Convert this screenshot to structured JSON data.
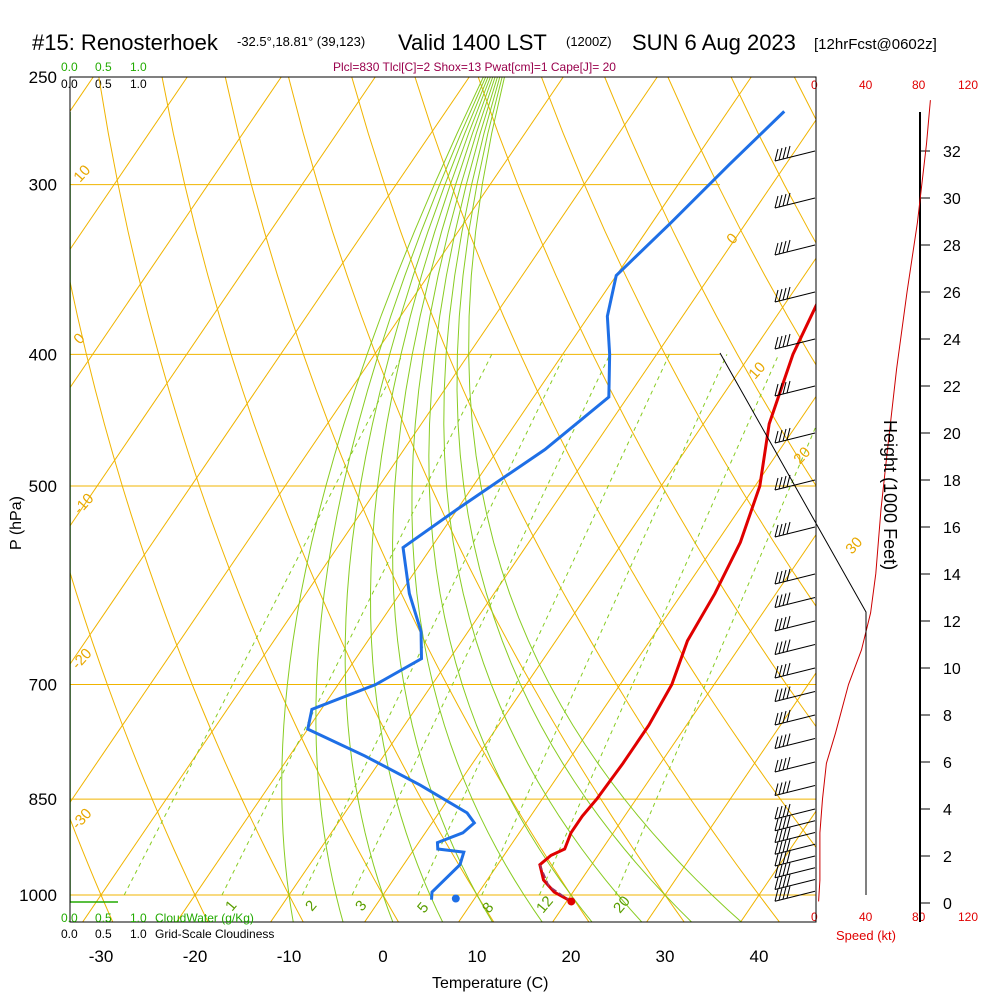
{
  "header": {
    "station": "#15: Renosterhoek",
    "coords": "-32.5°,18.81° (39,123)",
    "valid": "Valid 1400 LST",
    "zulu": "(1200Z)",
    "date": "SUN 6 Aug 2023",
    "forecast": "[12hrFcst@0602z]"
  },
  "indices": "Plcl=830 Tlcl[C]=2 Shox=13 Pwat[cm]=1 Cape[J]= 20",
  "cloud_scale": {
    "top_green": [
      "0.0",
      "0.5",
      "1.0"
    ],
    "top_black": [
      "0.0",
      "0.5",
      "1.0"
    ],
    "bottom_green": [
      "0.0",
      "0.5",
      "1.0"
    ],
    "bottom_black": [
      "0.0",
      "0.5",
      "1.0"
    ],
    "cloudwater_label": "CloudWater (g/Kg)",
    "cloudiness_label": "Grid-Scale Cloudiness"
  },
  "speed_axis": {
    "ticks": [
      "0",
      "40",
      "80",
      "120"
    ],
    "label": "Speed (kt)"
  },
  "chart_data": {
    "type": "line",
    "title": "#15: Renosterhoek Valid 1400 LST (1200Z) SUN 6 Aug 2023",
    "xlabel": "Temperature (C)",
    "ylabel": "P (hPa)",
    "y2label": "Height (1000 Feet)",
    "x_ticks": [
      "-30",
      "-20",
      "-10",
      "0",
      "10",
      "20",
      "30",
      "40"
    ],
    "y_ticks": [
      "250",
      "300",
      "400",
      "500",
      "700",
      "850",
      "1000"
    ],
    "height_ticks": [
      "0",
      "2",
      "4",
      "6",
      "8",
      "10",
      "12",
      "14",
      "16",
      "18",
      "20",
      "22",
      "24",
      "26",
      "28",
      "30",
      "32"
    ],
    "xlim": [
      -34,
      36
    ],
    "ylim": [
      1050,
      250
    ],
    "series": [
      {
        "key": "temperature",
        "color": "#e00000",
        "points": [
          [
            20.5,
            1011
          ],
          [
            18,
            995
          ],
          [
            16,
            975
          ],
          [
            14.5,
            950
          ],
          [
            15,
            935
          ],
          [
            16,
            925
          ],
          [
            15.5,
            900
          ],
          [
            15.5,
            875
          ],
          [
            15.8,
            850
          ],
          [
            16,
            800
          ],
          [
            16,
            750
          ],
          [
            15.5,
            700
          ],
          [
            14,
            650
          ],
          [
            13.5,
            600
          ],
          [
            12.5,
            550
          ],
          [
            10.5,
            500
          ],
          [
            7,
            450
          ],
          [
            4.5,
            400
          ],
          [
            3.5,
            370
          ],
          [
            2,
            330
          ],
          [
            0,
            300
          ],
          [
            -2,
            280
          ],
          [
            -4,
            265
          ]
        ]
      },
      {
        "key": "dewpoint",
        "color": "#1e6fe6",
        "points": [
          [
            5.5,
            1008
          ],
          [
            5,
            995
          ],
          [
            6,
            950
          ],
          [
            5.5,
            930
          ],
          [
            2.5,
            925
          ],
          [
            2,
            915
          ],
          [
            4,
            900
          ],
          [
            4.5,
            885
          ],
          [
            3,
            870
          ],
          [
            -4,
            830
          ],
          [
            -12,
            790
          ],
          [
            -20,
            755
          ],
          [
            -21,
            730
          ],
          [
            -16,
            700
          ],
          [
            -13,
            670
          ],
          [
            -15,
            640
          ],
          [
            -19,
            600
          ],
          [
            -23,
            555
          ],
          [
            -20,
            520
          ],
          [
            -15,
            470
          ],
          [
            -12,
            430
          ],
          [
            -15,
            400
          ],
          [
            -18,
            375
          ],
          [
            -20,
            350
          ],
          [
            -18,
            320
          ],
          [
            -16,
            290
          ],
          [
            -14,
            265
          ]
        ]
      },
      {
        "key": "parcel",
        "color": "#993366",
        "points": [
          [
            20.5,
            1011
          ],
          [
            17,
            985
          ],
          [
            14.5,
            950
          ]
        ]
      }
    ],
    "surface_temp": 20.5,
    "surface_dewpoint": 8,
    "surface_pressure": 1011,
    "isotherm_labels": [
      "10",
      "0",
      "-10",
      "-20",
      "-30",
      "0",
      "10",
      "20",
      "30"
    ],
    "mixing_ratio_labels": [
      "1",
      "2",
      "3",
      "5",
      "8",
      "12",
      "20"
    ],
    "wind_speed_profile": {
      "x_range_kt": [
        0,
        120
      ],
      "points": [
        [
          2,
          1011
        ],
        [
          3,
          975
        ],
        [
          3,
          900
        ],
        [
          5,
          850
        ],
        [
          8,
          800
        ],
        [
          15,
          760
        ],
        [
          25,
          700
        ],
        [
          35,
          660
        ],
        [
          42,
          620
        ],
        [
          46,
          580
        ],
        [
          50,
          520
        ],
        [
          55,
          470
        ],
        [
          62,
          410
        ],
        [
          70,
          360
        ],
        [
          78,
          320
        ],
        [
          85,
          280
        ],
        [
          88,
          260
        ]
      ]
    },
    "wind_barbs_heights_kft": [
      0.5,
      1,
      1.5,
      2,
      2.5,
      3,
      3.5,
      4,
      5,
      6,
      7,
      8,
      9,
      10,
      11,
      12,
      13,
      14,
      16,
      18,
      20,
      22,
      24,
      26,
      28,
      30,
      32
    ]
  }
}
